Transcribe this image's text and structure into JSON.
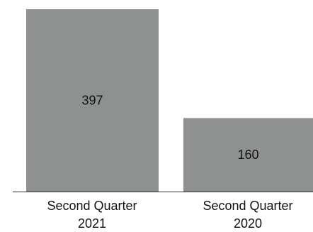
{
  "chart_data": {
    "type": "bar",
    "categories": [
      [
        "Second Quarter",
        "2021"
      ],
      [
        "Second Quarter",
        "2020"
      ]
    ],
    "values": [
      397,
      160
    ],
    "data_labels": [
      "397",
      "160"
    ],
    "title": "",
    "xlabel": "",
    "ylabel": "",
    "ylim": [
      0,
      397
    ],
    "grid": false,
    "legend": "none",
    "colors": {
      "bar": "#8f9190",
      "axis": "#333333",
      "text": "#111111"
    }
  }
}
